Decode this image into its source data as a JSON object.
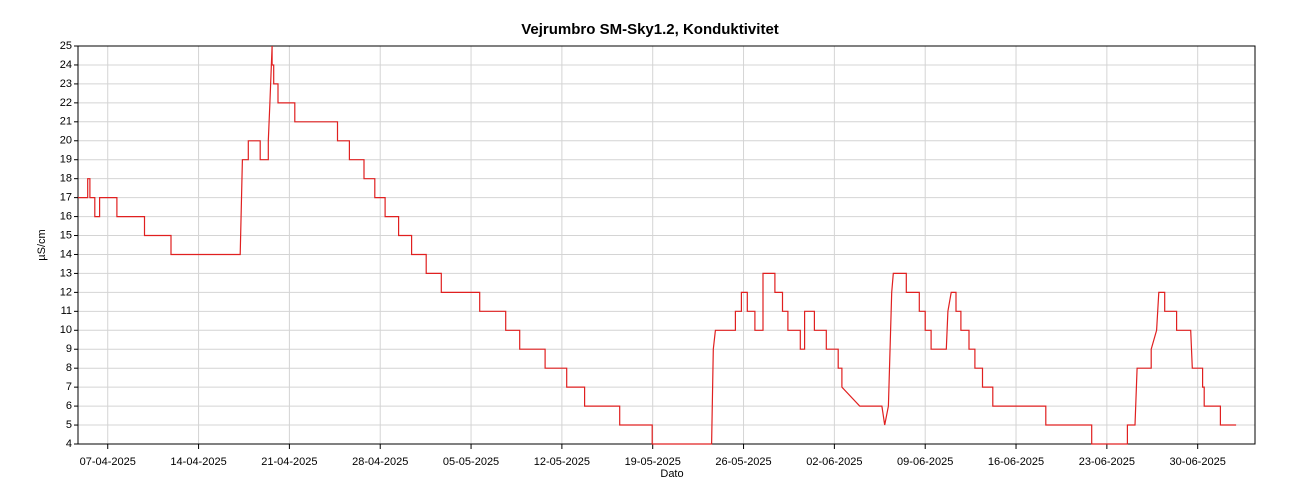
{
  "chart_data": {
    "type": "line",
    "title": "Vejrumbro SM-Sky1.2, Konduktivitet",
    "xlabel": "Dato",
    "ylabel": "µS/cm",
    "color": "#e02020",
    "grid": true,
    "ylim": [
      4,
      25
    ],
    "yticks": [
      4,
      5,
      6,
      7,
      8,
      9,
      10,
      11,
      12,
      13,
      14,
      15,
      16,
      17,
      18,
      19,
      20,
      21,
      22,
      23,
      24,
      25
    ],
    "xlim": [
      "2025-04-04T17:00",
      "2025-07-04T10:00"
    ],
    "xticks": [
      {
        "value": "2025-04-07T00:00",
        "label": "07-04-2025"
      },
      {
        "value": "2025-04-14T00:00",
        "label": "14-04-2025"
      },
      {
        "value": "2025-04-21T00:00",
        "label": "21-04-2025"
      },
      {
        "value": "2025-04-28T00:00",
        "label": "28-04-2025"
      },
      {
        "value": "2025-05-05T00:00",
        "label": "05-05-2025"
      },
      {
        "value": "2025-05-12T00:00",
        "label": "12-05-2025"
      },
      {
        "value": "2025-05-19T00:00",
        "label": "19-05-2025"
      },
      {
        "value": "2025-05-26T00:00",
        "label": "26-05-2025"
      },
      {
        "value": "2025-06-02T00:00",
        "label": "02-06-2025"
      },
      {
        "value": "2025-06-09T00:00",
        "label": "09-06-2025"
      },
      {
        "value": "2025-06-16T00:00",
        "label": "16-06-2025"
      },
      {
        "value": "2025-06-23T00:00",
        "label": "23-06-2025"
      },
      {
        "value": "2025-06-30T00:00",
        "label": "30-06-2025"
      }
    ],
    "x": [
      "2025-04-04T17:00",
      "2025-04-05T11:00",
      "2025-04-05T11:00",
      "2025-04-05T15:00",
      "2025-04-05T15:00",
      "2025-04-06T00:00",
      "2025-04-06T00:00",
      "2025-04-06T09:00",
      "2025-04-06T09:00",
      "2025-04-07T17:00",
      "2025-04-07T17:00",
      "2025-04-09T20:00",
      "2025-04-09T20:00",
      "2025-04-11T21:00",
      "2025-04-11T21:00",
      "2025-04-17T05:00",
      "2025-04-17T09:00",
      "2025-04-17T20:00",
      "2025-04-17T20:00",
      "2025-04-18T18:00",
      "2025-04-18T18:00",
      "2025-04-19T09:00",
      "2025-04-19T09:00",
      "2025-04-19T12:00",
      "2025-04-19T16:00",
      "2025-04-19T16:00",
      "2025-04-19T19:00",
      "2025-04-19T19:00",
      "2025-04-20T03:00",
      "2025-04-20T03:00",
      "2025-04-21T10:00",
      "2025-04-21T10:00",
      "2025-04-24T17:00",
      "2025-04-24T17:00",
      "2025-04-25T15:00",
      "2025-04-25T15:00",
      "2025-04-26T18:00",
      "2025-04-26T18:00",
      "2025-04-27T14:00",
      "2025-04-27T14:00",
      "2025-04-28T09:00",
      "2025-04-28T09:00",
      "2025-04-29T10:00",
      "2025-04-29T10:00",
      "2025-04-30T10:00",
      "2025-04-30T10:00",
      "2025-05-01T13:00",
      "2025-05-01T13:00",
      "2025-05-02T17:00",
      "2025-05-02T17:00",
      "2025-05-05T16:00",
      "2025-05-05T16:00",
      "2025-05-07T16:00",
      "2025-05-07T16:00",
      "2025-05-08T18:00",
      "2025-05-08T18:00",
      "2025-05-10T17:00",
      "2025-05-10T17:00",
      "2025-05-12T09:00",
      "2025-05-12T09:00",
      "2025-05-13T18:00",
      "2025-05-13T18:00",
      "2025-05-16T11:00",
      "2025-05-16T11:00",
      "2025-05-18T23:00",
      "2025-05-18T23:00",
      "2025-05-23T13:00",
      "2025-05-23T16:00",
      "2025-05-23T20:00",
      "2025-05-25T09:00",
      "2025-05-25T09:00",
      "2025-05-25T20:00",
      "2025-05-25T20:00",
      "2025-05-26T07:00",
      "2025-05-26T07:00",
      "2025-05-26T21:00",
      "2025-05-26T21:00",
      "2025-05-27T12:00",
      "2025-05-27T12:00",
      "2025-05-28T10:00",
      "2025-05-28T10:00",
      "2025-05-29T00:00",
      "2025-05-29T00:00",
      "2025-05-29T10:00",
      "2025-05-29T10:00",
      "2025-05-30T09:00",
      "2025-05-30T09:00",
      "2025-05-30T17:00",
      "2025-05-30T17:00",
      "2025-05-31T11:00",
      "2025-05-31T11:00",
      "2025-06-01T09:00",
      "2025-06-01T09:00",
      "2025-06-02T07:00",
      "2025-06-02T07:00",
      "2025-06-02T14:00",
      "2025-06-02T14:00",
      "2025-06-03T23:00",
      "2025-06-05T16:00",
      "2025-06-05T21:00",
      "2025-06-06T04:00",
      "2025-06-06T10:00",
      "2025-06-06T13:00",
      "2025-06-07T13:00",
      "2025-06-07T13:00",
      "2025-06-08T13:00",
      "2025-06-08T13:00",
      "2025-06-09T00:00",
      "2025-06-09T00:00",
      "2025-06-09T11:00",
      "2025-06-09T11:00",
      "2025-06-10T15:00",
      "2025-06-10T18:00",
      "2025-06-11T00:00",
      "2025-06-11T09:00",
      "2025-06-11T09:00",
      "2025-06-11T18:00",
      "2025-06-11T18:00",
      "2025-06-12T09:00",
      "2025-06-12T09:00",
      "2025-06-12T20:00",
      "2025-06-12T20:00",
      "2025-06-13T10:00",
      "2025-06-13T10:00",
      "2025-06-14T05:00",
      "2025-06-14T05:00",
      "2025-06-18T07:00",
      "2025-06-18T07:00",
      "2025-06-21T20:00",
      "2025-06-21T20:00",
      "2025-06-24T14:00",
      "2025-06-24T14:00",
      "2025-06-25T04:00",
      "2025-06-25T08:00",
      "2025-06-26T10:00",
      "2025-06-26T10:00",
      "2025-06-26T20:00",
      "2025-06-27T00:00",
      "2025-06-27T11:00",
      "2025-06-27T11:00",
      "2025-06-28T09:00",
      "2025-06-28T09:00",
      "2025-06-29T11:00",
      "2025-06-29T14:00",
      "2025-06-30T09:00",
      "2025-06-30T09:00",
      "2025-06-30T12:00",
      "2025-06-30T12:00",
      "2025-07-01T18:00",
      "2025-07-01T18:00",
      "2025-07-02T23:00"
    ],
    "values": [
      17,
      17,
      18,
      18,
      17,
      17,
      16,
      16,
      17,
      17,
      16,
      16,
      15,
      15,
      14,
      14,
      19,
      19,
      20,
      20,
      19,
      19,
      20,
      22,
      25,
      24,
      24,
      23,
      23,
      22,
      22,
      21,
      21,
      20,
      20,
      19,
      19,
      18,
      18,
      17,
      17,
      16,
      16,
      15,
      15,
      14,
      14,
      13,
      13,
      12,
      12,
      11,
      11,
      10,
      10,
      9,
      9,
      8,
      8,
      7,
      7,
      6,
      6,
      5,
      5,
      4,
      4,
      9,
      10,
      10,
      11,
      11,
      12,
      12,
      11,
      11,
      10,
      10,
      13,
      13,
      12,
      12,
      11,
      11,
      10,
      10,
      9,
      9,
      11,
      11,
      10,
      10,
      9,
      9,
      8,
      8,
      7,
      6,
      6,
      5,
      6,
      12,
      13,
      13,
      12,
      12,
      11,
      11,
      10,
      10,
      9,
      9,
      11,
      12,
      12,
      11,
      11,
      10,
      10,
      9,
      9,
      8,
      8,
      7,
      7,
      6,
      6,
      5,
      5,
      4,
      4,
      5,
      5,
      8,
      8,
      9,
      10,
      12,
      12,
      11,
      11,
      10,
      10,
      8,
      8,
      7,
      7,
      6,
      6,
      5,
      5
    ]
  }
}
